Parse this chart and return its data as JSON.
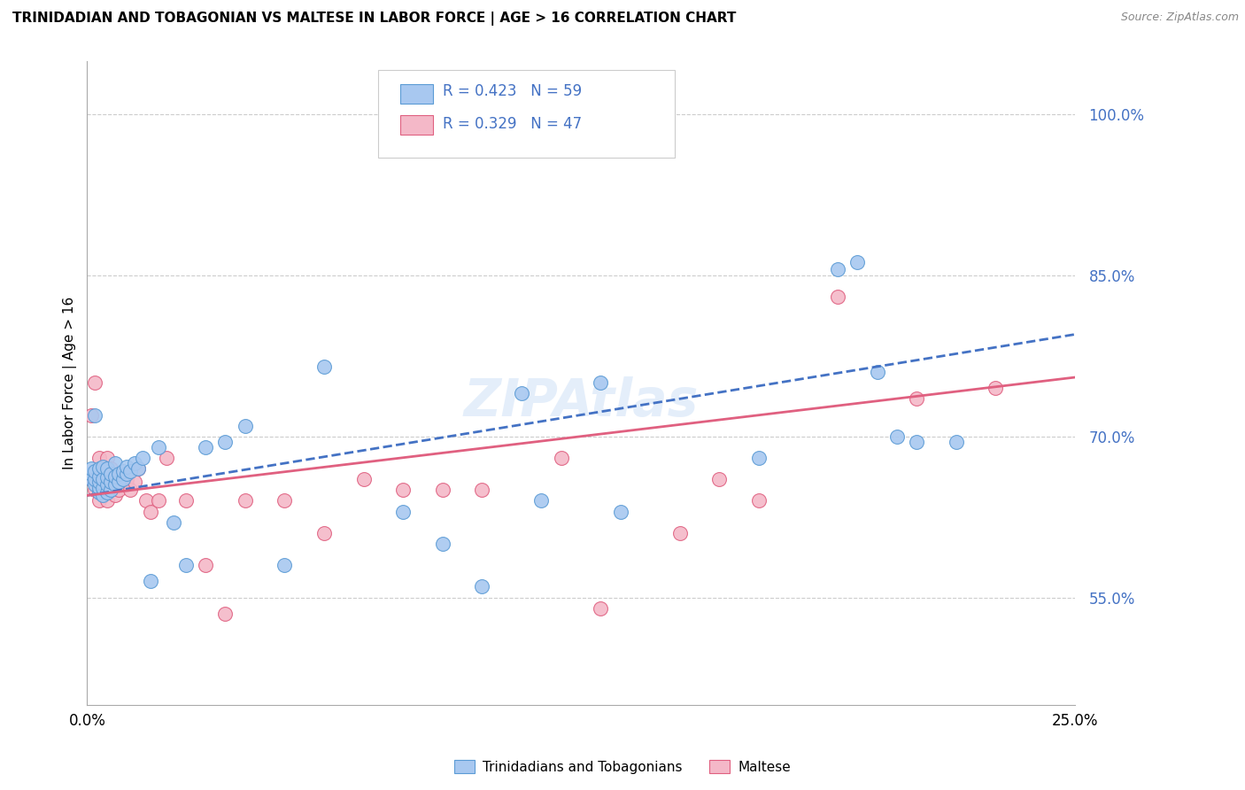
{
  "title": "TRINIDADIAN AND TOBAGONIAN VS MALTESE IN LABOR FORCE | AGE > 16 CORRELATION CHART",
  "source": "Source: ZipAtlas.com",
  "ylabel": "In Labor Force | Age > 16",
  "ytick_labels": [
    "55.0%",
    "70.0%",
    "85.0%",
    "100.0%"
  ],
  "ytick_values": [
    0.55,
    0.7,
    0.85,
    1.0
  ],
  "xlim": [
    0.0,
    0.25
  ],
  "ylim": [
    0.45,
    1.05
  ],
  "blue_color": "#a8c8f0",
  "blue_edge_color": "#5b9bd5",
  "blue_line_color": "#4472c4",
  "pink_color": "#f4b8c8",
  "pink_edge_color": "#e06080",
  "pink_line_color": "#e06080",
  "blue_R": "0.423",
  "blue_N": "59",
  "pink_R": "0.329",
  "pink_N": "47",
  "legend_label_blue": "Trinidadians and Tobagonians",
  "legend_label_pink": "Maltese",
  "watermark": "ZIPAtlas",
  "blue_line_x0": 0.0,
  "blue_line_y0": 0.645,
  "blue_line_x1": 0.25,
  "blue_line_y1": 0.795,
  "pink_line_x0": 0.0,
  "pink_line_y0": 0.645,
  "pink_line_x1": 0.25,
  "pink_line_y1": 0.755,
  "blue_x": [
    0.001,
    0.001,
    0.001,
    0.002,
    0.002,
    0.002,
    0.002,
    0.003,
    0.003,
    0.003,
    0.003,
    0.003,
    0.004,
    0.004,
    0.004,
    0.004,
    0.005,
    0.005,
    0.005,
    0.005,
    0.006,
    0.006,
    0.006,
    0.007,
    0.007,
    0.007,
    0.008,
    0.008,
    0.009,
    0.009,
    0.01,
    0.01,
    0.011,
    0.012,
    0.013,
    0.014,
    0.016,
    0.018,
    0.022,
    0.025,
    0.03,
    0.035,
    0.04,
    0.05,
    0.06,
    0.08,
    0.09,
    0.1,
    0.11,
    0.115,
    0.13,
    0.135,
    0.17,
    0.19,
    0.195,
    0.2,
    0.205,
    0.21,
    0.22
  ],
  "blue_y": [
    0.66,
    0.665,
    0.67,
    0.655,
    0.66,
    0.668,
    0.72,
    0.648,
    0.652,
    0.658,
    0.663,
    0.67,
    0.645,
    0.652,
    0.66,
    0.672,
    0.648,
    0.655,
    0.662,
    0.67,
    0.65,
    0.658,
    0.665,
    0.655,
    0.663,
    0.675,
    0.658,
    0.665,
    0.66,
    0.668,
    0.665,
    0.672,
    0.668,
    0.675,
    0.67,
    0.68,
    0.565,
    0.69,
    0.62,
    0.58,
    0.69,
    0.695,
    0.71,
    0.58,
    0.765,
    0.63,
    0.6,
    0.56,
    0.74,
    0.64,
    0.75,
    0.63,
    0.68,
    0.856,
    0.862,
    0.76,
    0.7,
    0.695,
    0.695
  ],
  "pink_x": [
    0.001,
    0.001,
    0.002,
    0.002,
    0.002,
    0.003,
    0.003,
    0.003,
    0.003,
    0.004,
    0.004,
    0.005,
    0.005,
    0.005,
    0.006,
    0.006,
    0.007,
    0.007,
    0.008,
    0.009,
    0.01,
    0.01,
    0.011,
    0.012,
    0.013,
    0.015,
    0.016,
    0.018,
    0.02,
    0.025,
    0.03,
    0.035,
    0.04,
    0.05,
    0.06,
    0.07,
    0.08,
    0.09,
    0.1,
    0.12,
    0.13,
    0.15,
    0.16,
    0.17,
    0.19,
    0.21,
    0.23
  ],
  "pink_y": [
    0.66,
    0.72,
    0.65,
    0.66,
    0.75,
    0.64,
    0.65,
    0.66,
    0.68,
    0.655,
    0.665,
    0.64,
    0.65,
    0.68,
    0.66,
    0.67,
    0.645,
    0.658,
    0.65,
    0.665,
    0.655,
    0.66,
    0.65,
    0.658,
    0.67,
    0.64,
    0.63,
    0.64,
    0.68,
    0.64,
    0.58,
    0.535,
    0.64,
    0.64,
    0.61,
    0.66,
    0.65,
    0.65,
    0.65,
    0.68,
    0.54,
    0.61,
    0.66,
    0.64,
    0.83,
    0.735,
    0.745
  ]
}
